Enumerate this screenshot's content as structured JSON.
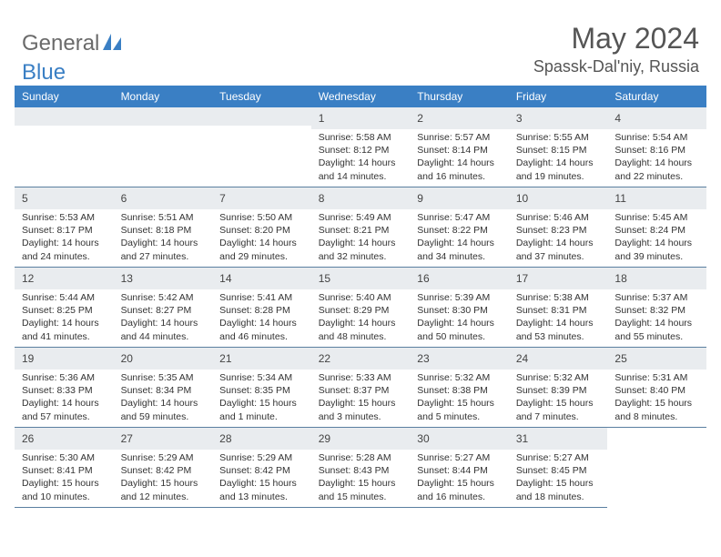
{
  "logo": {
    "text1": "General",
    "text2": "Blue"
  },
  "title": "May 2024",
  "location": "Spassk-Dal'niy, Russia",
  "header_bg": "#3a7fc4",
  "stripe_bg": "#e9ecef",
  "border_color": "#5a7fa0",
  "weekdays": [
    "Sunday",
    "Monday",
    "Tuesday",
    "Wednesday",
    "Thursday",
    "Friday",
    "Saturday"
  ],
  "leading_blanks": 3,
  "days": [
    {
      "n": "1",
      "sunrise": "5:58 AM",
      "sunset": "8:12 PM",
      "daylight": "14 hours and 14 minutes."
    },
    {
      "n": "2",
      "sunrise": "5:57 AM",
      "sunset": "8:14 PM",
      "daylight": "14 hours and 16 minutes."
    },
    {
      "n": "3",
      "sunrise": "5:55 AM",
      "sunset": "8:15 PM",
      "daylight": "14 hours and 19 minutes."
    },
    {
      "n": "4",
      "sunrise": "5:54 AM",
      "sunset": "8:16 PM",
      "daylight": "14 hours and 22 minutes."
    },
    {
      "n": "5",
      "sunrise": "5:53 AM",
      "sunset": "8:17 PM",
      "daylight": "14 hours and 24 minutes."
    },
    {
      "n": "6",
      "sunrise": "5:51 AM",
      "sunset": "8:18 PM",
      "daylight": "14 hours and 27 minutes."
    },
    {
      "n": "7",
      "sunrise": "5:50 AM",
      "sunset": "8:20 PM",
      "daylight": "14 hours and 29 minutes."
    },
    {
      "n": "8",
      "sunrise": "5:49 AM",
      "sunset": "8:21 PM",
      "daylight": "14 hours and 32 minutes."
    },
    {
      "n": "9",
      "sunrise": "5:47 AM",
      "sunset": "8:22 PM",
      "daylight": "14 hours and 34 minutes."
    },
    {
      "n": "10",
      "sunrise": "5:46 AM",
      "sunset": "8:23 PM",
      "daylight": "14 hours and 37 minutes."
    },
    {
      "n": "11",
      "sunrise": "5:45 AM",
      "sunset": "8:24 PM",
      "daylight": "14 hours and 39 minutes."
    },
    {
      "n": "12",
      "sunrise": "5:44 AM",
      "sunset": "8:25 PM",
      "daylight": "14 hours and 41 minutes."
    },
    {
      "n": "13",
      "sunrise": "5:42 AM",
      "sunset": "8:27 PM",
      "daylight": "14 hours and 44 minutes."
    },
    {
      "n": "14",
      "sunrise": "5:41 AM",
      "sunset": "8:28 PM",
      "daylight": "14 hours and 46 minutes."
    },
    {
      "n": "15",
      "sunrise": "5:40 AM",
      "sunset": "8:29 PM",
      "daylight": "14 hours and 48 minutes."
    },
    {
      "n": "16",
      "sunrise": "5:39 AM",
      "sunset": "8:30 PM",
      "daylight": "14 hours and 50 minutes."
    },
    {
      "n": "17",
      "sunrise": "5:38 AM",
      "sunset": "8:31 PM",
      "daylight": "14 hours and 53 minutes."
    },
    {
      "n": "18",
      "sunrise": "5:37 AM",
      "sunset": "8:32 PM",
      "daylight": "14 hours and 55 minutes."
    },
    {
      "n": "19",
      "sunrise": "5:36 AM",
      "sunset": "8:33 PM",
      "daylight": "14 hours and 57 minutes."
    },
    {
      "n": "20",
      "sunrise": "5:35 AM",
      "sunset": "8:34 PM",
      "daylight": "14 hours and 59 minutes."
    },
    {
      "n": "21",
      "sunrise": "5:34 AM",
      "sunset": "8:35 PM",
      "daylight": "15 hours and 1 minute."
    },
    {
      "n": "22",
      "sunrise": "5:33 AM",
      "sunset": "8:37 PM",
      "daylight": "15 hours and 3 minutes."
    },
    {
      "n": "23",
      "sunrise": "5:32 AM",
      "sunset": "8:38 PM",
      "daylight": "15 hours and 5 minutes."
    },
    {
      "n": "24",
      "sunrise": "5:32 AM",
      "sunset": "8:39 PM",
      "daylight": "15 hours and 7 minutes."
    },
    {
      "n": "25",
      "sunrise": "5:31 AM",
      "sunset": "8:40 PM",
      "daylight": "15 hours and 8 minutes."
    },
    {
      "n": "26",
      "sunrise": "5:30 AM",
      "sunset": "8:41 PM",
      "daylight": "15 hours and 10 minutes."
    },
    {
      "n": "27",
      "sunrise": "5:29 AM",
      "sunset": "8:42 PM",
      "daylight": "15 hours and 12 minutes."
    },
    {
      "n": "28",
      "sunrise": "5:29 AM",
      "sunset": "8:42 PM",
      "daylight": "15 hours and 13 minutes."
    },
    {
      "n": "29",
      "sunrise": "5:28 AM",
      "sunset": "8:43 PM",
      "daylight": "15 hours and 15 minutes."
    },
    {
      "n": "30",
      "sunrise": "5:27 AM",
      "sunset": "8:44 PM",
      "daylight": "15 hours and 16 minutes."
    },
    {
      "n": "31",
      "sunrise": "5:27 AM",
      "sunset": "8:45 PM",
      "daylight": "15 hours and 18 minutes."
    }
  ],
  "labels": {
    "sunrise": "Sunrise:",
    "sunset": "Sunset:",
    "daylight": "Daylight:"
  }
}
